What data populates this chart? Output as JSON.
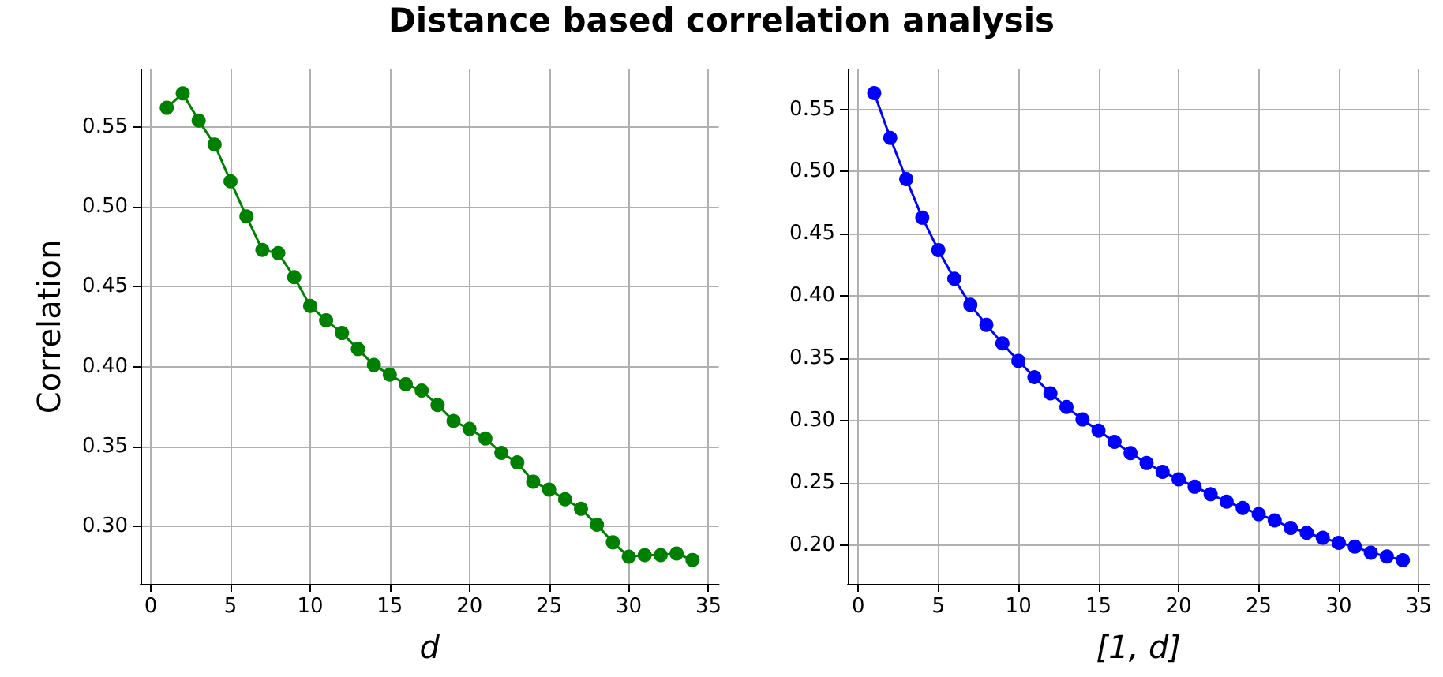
{
  "chart_data": [
    {
      "type": "line",
      "title": "Distance based correlation analysis",
      "xlabel": "d",
      "ylabel": "Correlation",
      "marker": "circle",
      "grid": true,
      "x": [
        1,
        2,
        3,
        4,
        5,
        6,
        7,
        8,
        9,
        10,
        11,
        12,
        13,
        14,
        15,
        16,
        17,
        18,
        19,
        20,
        21,
        22,
        23,
        24,
        25,
        26,
        27,
        28,
        29,
        30,
        31,
        32,
        33,
        34
      ],
      "series": [
        {
          "color": "#008000",
          "values": [
            0.562,
            0.571,
            0.554,
            0.539,
            0.516,
            0.494,
            0.473,
            0.471,
            0.456,
            0.438,
            0.429,
            0.421,
            0.411,
            0.401,
            0.395,
            0.389,
            0.385,
            0.376,
            0.366,
            0.361,
            0.355,
            0.346,
            0.34,
            0.328,
            0.323,
            0.317,
            0.311,
            0.301,
            0.29,
            0.281,
            0.282,
            0.282,
            0.283,
            0.279
          ]
        }
      ],
      "xlim": [
        -0.65,
        35.65
      ],
      "xticks": [
        0,
        5,
        10,
        15,
        20,
        25,
        30,
        35
      ],
      "ylim": [
        0.264,
        0.586
      ],
      "yticks": [
        {
          "value": 0.3,
          "label": "0.30"
        },
        {
          "value": 0.35,
          "label": "0.35"
        },
        {
          "value": 0.4,
          "label": "0.40"
        },
        {
          "value": 0.45,
          "label": "0.45"
        },
        {
          "value": 0.5,
          "label": "0.50"
        },
        {
          "value": 0.55,
          "label": "0.55"
        }
      ]
    },
    {
      "type": "line",
      "xlabel": "[1, d]",
      "marker": "circle",
      "grid": true,
      "x": [
        1,
        2,
        3,
        4,
        5,
        6,
        7,
        8,
        9,
        10,
        11,
        12,
        13,
        14,
        15,
        16,
        17,
        18,
        19,
        20,
        21,
        22,
        23,
        24,
        25,
        26,
        27,
        28,
        29,
        30,
        31,
        32,
        33,
        34
      ],
      "series": [
        {
          "color": "#0000ff",
          "values": [
            0.563,
            0.527,
            0.494,
            0.463,
            0.437,
            0.414,
            0.393,
            0.377,
            0.362,
            0.348,
            0.335,
            0.322,
            0.311,
            0.301,
            0.292,
            0.283,
            0.274,
            0.266,
            0.259,
            0.253,
            0.247,
            0.241,
            0.235,
            0.23,
            0.225,
            0.22,
            0.214,
            0.21,
            0.206,
            0.202,
            0.199,
            0.194,
            0.191,
            0.188
          ]
        }
      ],
      "xlim": [
        -0.65,
        35.65
      ],
      "xticks": [
        0,
        5,
        10,
        15,
        20,
        25,
        30,
        35
      ],
      "ylim": [
        0.169,
        0.582
      ],
      "yticks": [
        {
          "value": 0.2,
          "label": "0.20"
        },
        {
          "value": 0.25,
          "label": "0.25"
        },
        {
          "value": 0.3,
          "label": "0.30"
        },
        {
          "value": 0.35,
          "label": "0.35"
        },
        {
          "value": 0.4,
          "label": "0.40"
        },
        {
          "value": 0.45,
          "label": "0.45"
        },
        {
          "value": 0.5,
          "label": "0.50"
        },
        {
          "value": 0.55,
          "label": "0.55"
        }
      ]
    }
  ]
}
